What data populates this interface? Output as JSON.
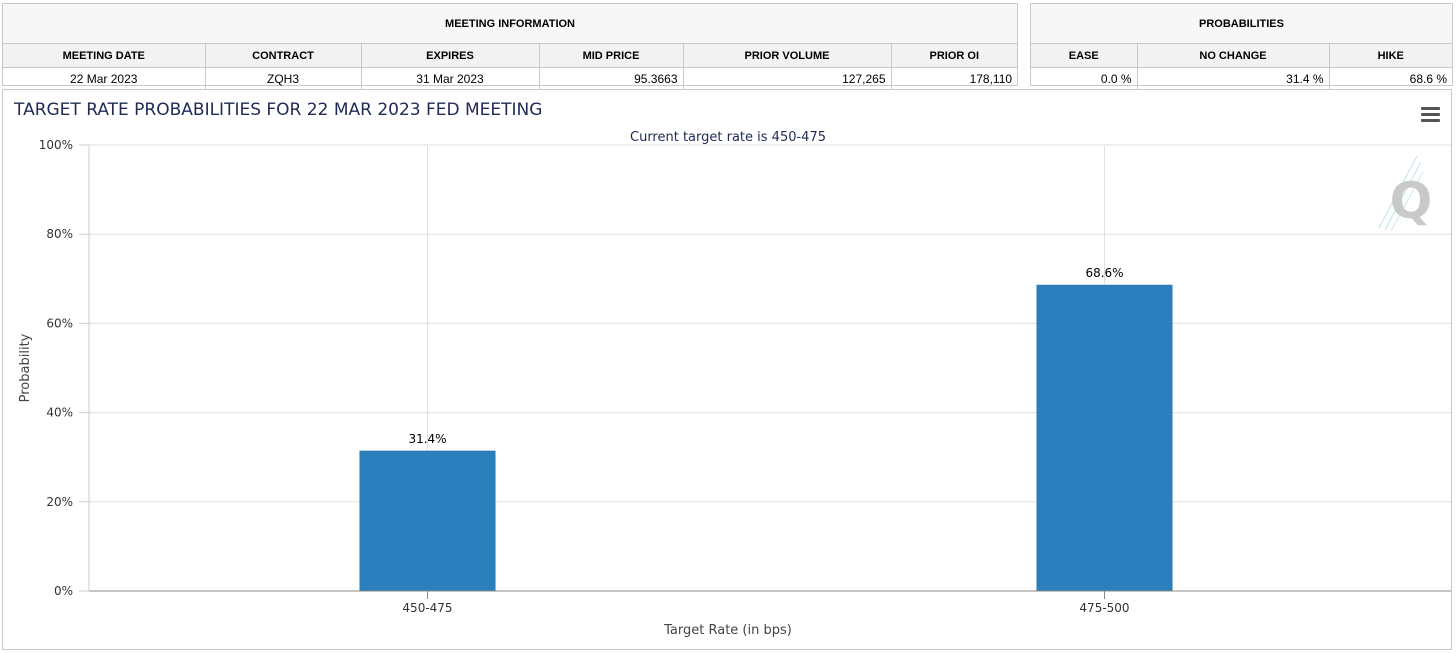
{
  "meeting_info": {
    "group_title": "MEETING INFORMATION",
    "headers": [
      "MEETING DATE",
      "CONTRACT",
      "EXPIRES",
      "MID PRICE",
      "PRIOR VOLUME",
      "PRIOR OI"
    ],
    "values": [
      "22 Mar 2023",
      "ZQH3",
      "31 Mar 2023",
      "95.3663",
      "127,265",
      "178,110"
    ]
  },
  "probabilities": {
    "group_title": "PROBABILITIES",
    "headers": [
      "EASE",
      "NO CHANGE",
      "HIKE"
    ],
    "values": [
      "0.0 %",
      "31.4 %",
      "68.6 %"
    ]
  },
  "logo": {
    "letter": "Q"
  },
  "icons": {
    "menu": "hamburger-menu-icon"
  },
  "chart_data": {
    "type": "bar",
    "title": "TARGET RATE PROBABILITIES FOR 22 MAR 2023 FED MEETING",
    "subtitle": "Current target rate is 450-475",
    "categories": [
      "450-475",
      "475-500"
    ],
    "values": [
      31.4,
      68.6
    ],
    "data_labels": [
      "31.4%",
      "68.6%"
    ],
    "xlabel": "Target Rate (in bps)",
    "ylabel": "Probability",
    "ylim": [
      0,
      100
    ],
    "yticks": [
      0,
      20,
      40,
      60,
      80,
      100
    ],
    "ytick_labels": [
      "0%",
      "20%",
      "40%",
      "60%",
      "80%",
      "100%"
    ],
    "grid": true,
    "bar_color": "#2a7fbc"
  }
}
